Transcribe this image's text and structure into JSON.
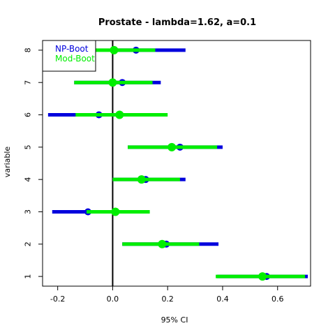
{
  "chart_data": {
    "type": "scatter",
    "title": "Prostate - lambda=1.62, a=0.1",
    "xlabel": "95% CI",
    "ylabel": "variable",
    "xlim": [
      -0.255,
      0.72
    ],
    "ylim": [
      0.7,
      8.3
    ],
    "x_ticks": [
      -0.2,
      0.0,
      0.2,
      0.4,
      0.6
    ],
    "x_tick_labels": [
      "-0.2",
      "0.0",
      "0.2",
      "0.4",
      "0.6"
    ],
    "y_ticks": [
      1,
      2,
      3,
      4,
      5,
      6,
      7,
      8
    ],
    "y_tick_labels": [
      "1",
      "2",
      "3",
      "4",
      "5",
      "6",
      "7",
      "8"
    ],
    "reference_line_x": 0,
    "legend": {
      "position": "top-left"
    },
    "series": [
      {
        "name": "NP-Boot",
        "color": "#0000dd",
        "intervals": [
          {
            "variable": 1,
            "lower": 0.38,
            "upper": 0.71,
            "estimate": 0.56
          },
          {
            "variable": 2,
            "lower": 0.035,
            "upper": 0.385,
            "estimate": 0.195
          },
          {
            "variable": 3,
            "lower": -0.22,
            "upper": 0.0,
            "estimate": -0.09
          },
          {
            "variable": 4,
            "lower": 0.0,
            "upper": 0.265,
            "estimate": 0.12
          },
          {
            "variable": 5,
            "lower": 0.055,
            "upper": 0.4,
            "estimate": 0.245
          },
          {
            "variable": 6,
            "lower": -0.235,
            "upper": -0.02,
            "estimate": -0.05
          },
          {
            "variable": 7,
            "lower": -0.14,
            "upper": 0.175,
            "estimate": 0.035
          },
          {
            "variable": 8,
            "lower": 0.0,
            "upper": 0.265,
            "estimate": 0.085
          }
        ]
      },
      {
        "name": "Mod-Boot",
        "color": "#00ee00",
        "intervals": [
          {
            "variable": 1,
            "lower": 0.375,
            "upper": 0.7,
            "estimate": 0.545
          },
          {
            "variable": 2,
            "lower": 0.035,
            "upper": 0.315,
            "estimate": 0.18
          },
          {
            "variable": 3,
            "lower": -0.095,
            "upper": 0.135,
            "estimate": 0.01
          },
          {
            "variable": 4,
            "lower": 0.0,
            "upper": 0.245,
            "estimate": 0.105
          },
          {
            "variable": 5,
            "lower": 0.055,
            "upper": 0.38,
            "estimate": 0.215
          },
          {
            "variable": 6,
            "lower": -0.135,
            "upper": 0.2,
            "estimate": 0.025
          },
          {
            "variable": 7,
            "lower": -0.14,
            "upper": 0.145,
            "estimate": 0.0
          },
          {
            "variable": 8,
            "lower": -0.065,
            "upper": 0.155,
            "estimate": 0.005
          }
        ]
      }
    ]
  }
}
